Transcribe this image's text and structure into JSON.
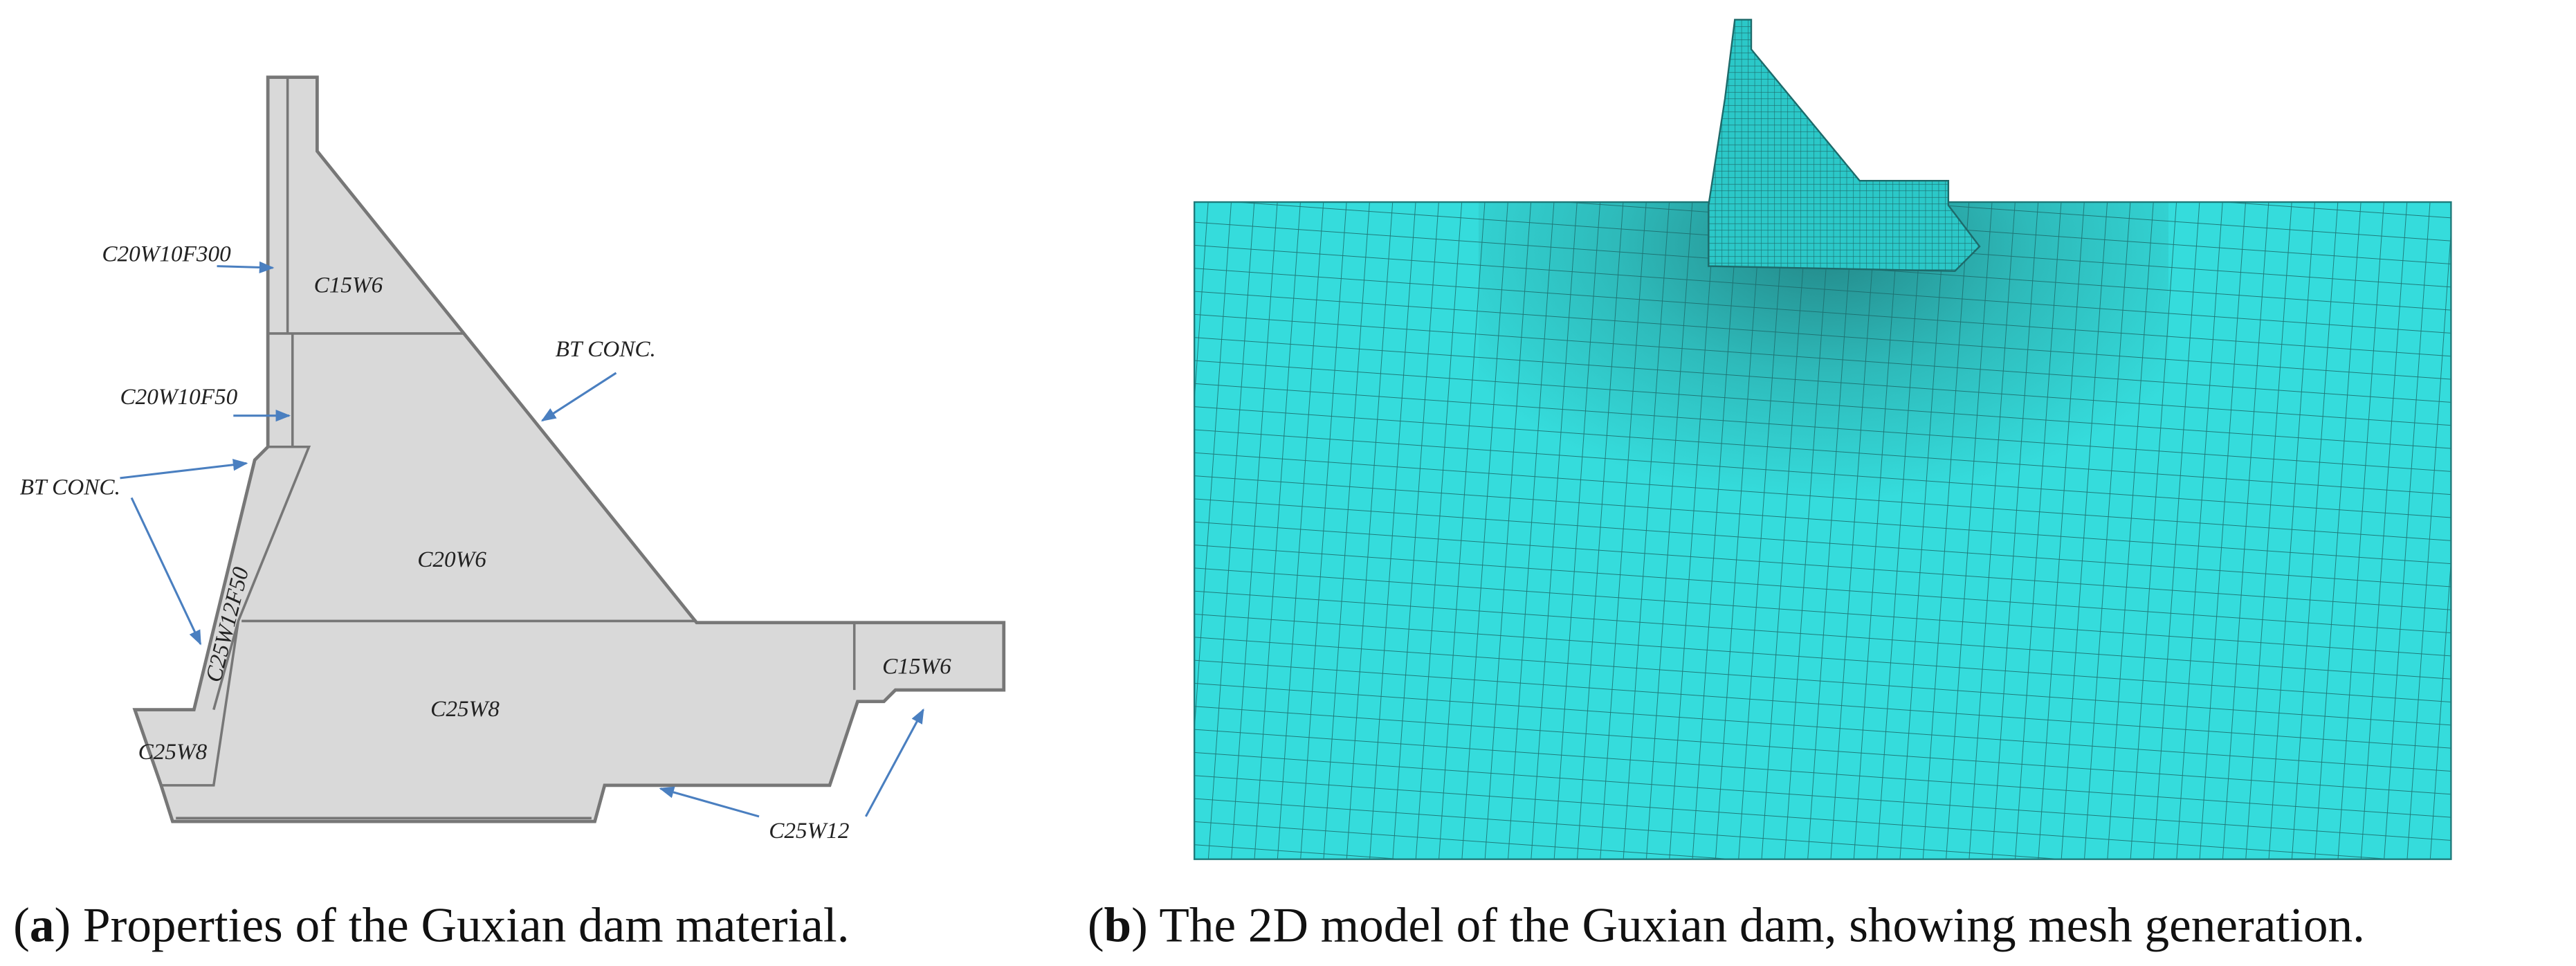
{
  "panel_a": {
    "labels": [
      "C20W10F300",
      "C15W6",
      "BT CONC.",
      "C20W10F50",
      "BT CONC.",
      "C20W6",
      "C25W12F50",
      "C25W8",
      "C25W8",
      "C15W6",
      "C25W12"
    ]
  },
  "captions": {
    "a": {
      "open": "(",
      "label": "a",
      "text": ") Properties of the Guxian dam material."
    },
    "b": {
      "open": "(",
      "label": "b",
      "text": ") The 2D model of the Guxian dam, showing mesh generation."
    }
  }
}
